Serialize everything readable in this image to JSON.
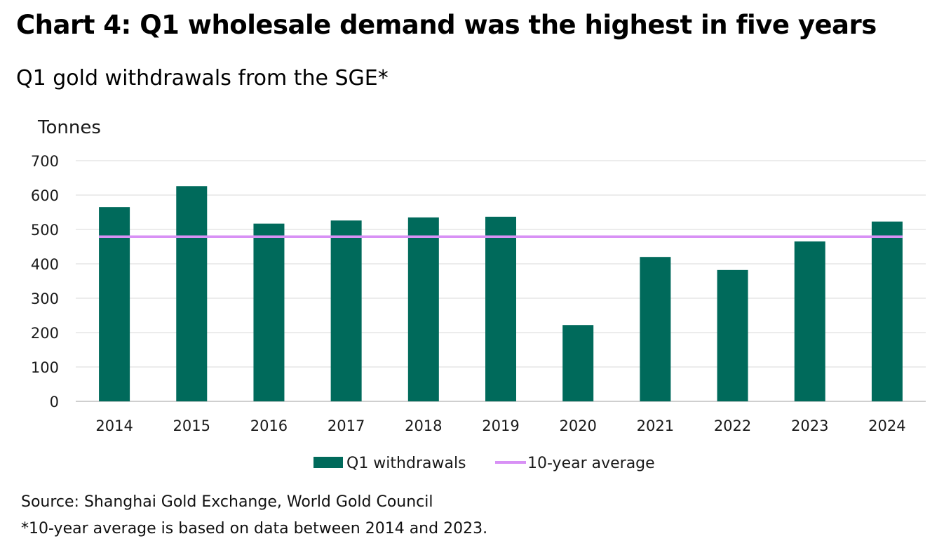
{
  "header": {
    "title": "Chart 4: Q1 wholesale demand was the highest in five years",
    "subtitle": "Q1 gold withdrawals from the SGE*"
  },
  "footnotes": {
    "source": "Source: Shanghai Gold Exchange, World Gold Council",
    "note": "*10-year average is based on data between 2014 and 2023."
  },
  "colors": {
    "bar": "#006a5b",
    "average_line": "#d891f5",
    "grid": "#d9d9d9",
    "axis": "#bfbfbf"
  },
  "chart_data": {
    "type": "bar",
    "title": "Chart 4: Q1 wholesale demand was the highest in five years",
    "subtitle": "Q1 gold withdrawals from the SGE*",
    "xlabel": "",
    "ylabel": "Tonnes",
    "categories": [
      "2014",
      "2015",
      "2016",
      "2017",
      "2018",
      "2019",
      "2020",
      "2021",
      "2022",
      "2023",
      "2024"
    ],
    "series": [
      {
        "name": "Q1 withdrawals",
        "type": "bar",
        "values": [
          565,
          626,
          517,
          526,
          535,
          537,
          222,
          420,
          382,
          465,
          523
        ]
      },
      {
        "name": "10-year average",
        "type": "line",
        "value": 479
      }
    ],
    "ylim": [
      0,
      700
    ],
    "yticks": [
      0,
      100,
      200,
      300,
      400,
      500,
      600,
      700
    ],
    "grid": true,
    "legend": "bottom-center"
  }
}
